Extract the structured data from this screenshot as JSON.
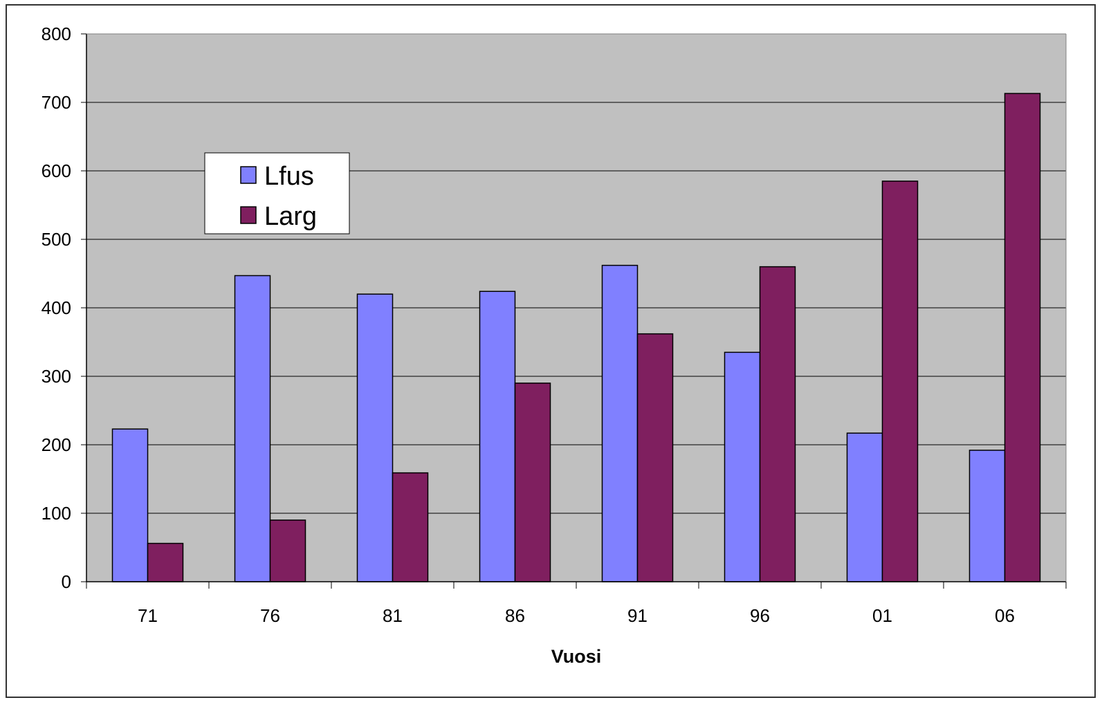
{
  "chart_data": {
    "type": "bar",
    "categories": [
      "71",
      "76",
      "81",
      "86",
      "91",
      "96",
      "01",
      "06"
    ],
    "series": [
      {
        "name": "Lfus",
        "color": "#8080ff",
        "values": [
          223,
          447,
          420,
          424,
          462,
          335,
          217,
          192
        ]
      },
      {
        "name": "Larg",
        "color": "#7f1f5f",
        "values": [
          56,
          90,
          159,
          290,
          362,
          460,
          585,
          713
        ]
      }
    ],
    "title": "",
    "xlabel": "Vuosi",
    "ylabel": "",
    "ylim": [
      0,
      800
    ],
    "yticks": [
      0,
      100,
      200,
      300,
      400,
      500,
      600,
      700,
      800
    ],
    "grid": true,
    "plot_background": "#c0c0c0",
    "legend_position": "top-left"
  }
}
